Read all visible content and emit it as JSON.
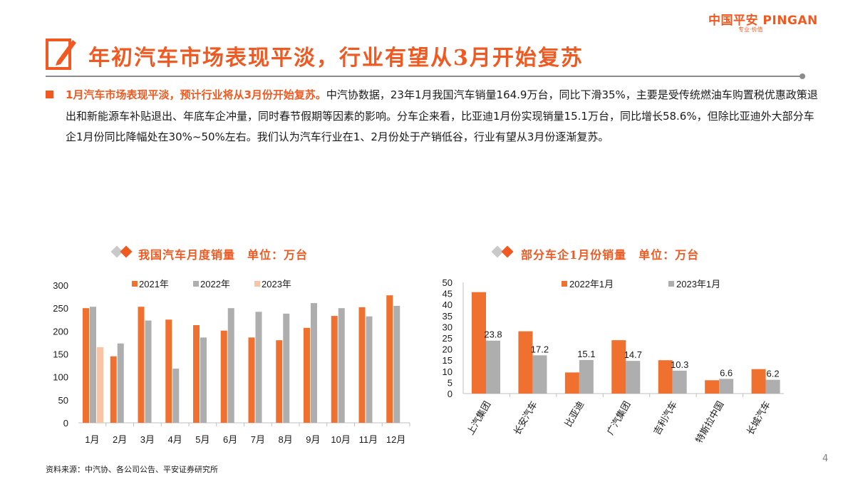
{
  "brand": {
    "name": "中国平安 PINGAN",
    "tagline": "专业·价值",
    "color": "#f05a22"
  },
  "header": {
    "title": "年初汽车市场表现平淡，行业有望从3月开始复苏",
    "icon": "pencil-edit-icon"
  },
  "body": {
    "lead": "1月汽车市场表现平淡，预计行业将从3月份开始复苏。",
    "text": "中汽协数据，23年1月我国汽车销量164.9万台，同比下滑35%，主要是受传统燃油车购置税优惠政策退出和新能源车补贴退出、年底车企冲量，同时春节假期等因素的影响。分车企来看，比亚迪1月份实现销量15.1万台，同比增长58.6%，但除比亚迪外大部分车企1月份同比降幅处在30%~50%左右。我们认为汽车行业在1、2月份处于产销低谷，行业有望从3月份逐渐复苏。"
  },
  "footer": {
    "source": "资料来源：中汽协、各公司公告、平安证券研究所",
    "page": "4"
  },
  "chart_data": [
    {
      "type": "bar",
      "title": "我国汽车月度销量　单位：万台",
      "categories": [
        "1月",
        "2月",
        "3月",
        "4月",
        "5月",
        "6月",
        "7月",
        "8月",
        "9月",
        "10月",
        "11月",
        "12月"
      ],
      "series": [
        {
          "name": "2021年",
          "color": "#f07030",
          "values": [
            250,
            145,
            253,
            225,
            213,
            201,
            186,
            180,
            207,
            233,
            252,
            278
          ]
        },
        {
          "name": "2022年",
          "color": "#aeaeae",
          "values": [
            253,
            173,
            223,
            118,
            186,
            250,
            242,
            238,
            261,
            250,
            232,
            255
          ]
        },
        {
          "name": "2023年",
          "color": "#f8c4a4",
          "values": [
            165,
            null,
            null,
            null,
            null,
            null,
            null,
            null,
            null,
            null,
            null,
            null
          ]
        }
      ],
      "ylim": [
        0,
        300
      ],
      "yticks": [
        0,
        50,
        100,
        150,
        200,
        250,
        300
      ],
      "legend": "top"
    },
    {
      "type": "bar",
      "title": "部分车企1月份销量　单位：万台",
      "categories": [
        "上汽集团",
        "长安汽车",
        "比亚迪",
        "广汽集团",
        "吉利汽车",
        "特斯拉中国",
        "长城汽车"
      ],
      "series": [
        {
          "name": "2022年1月",
          "color": "#f07030",
          "values": [
            45.6,
            28.0,
            9.5,
            24.0,
            15.0,
            6.0,
            11.0
          ]
        },
        {
          "name": "2023年1月",
          "color": "#aeaeae",
          "values": [
            23.8,
            17.2,
            15.1,
            14.7,
            10.3,
            6.6,
            6.2
          ]
        }
      ],
      "data_labels": [
        "23.8",
        "17.2",
        "15.1",
        "14.7",
        "10.3",
        "6.6",
        "6.2"
      ],
      "ylim": [
        0,
        50
      ],
      "yticks": [
        0,
        5,
        10,
        15,
        20,
        25,
        30,
        35,
        40,
        45,
        50
      ],
      "legend": "top"
    }
  ]
}
